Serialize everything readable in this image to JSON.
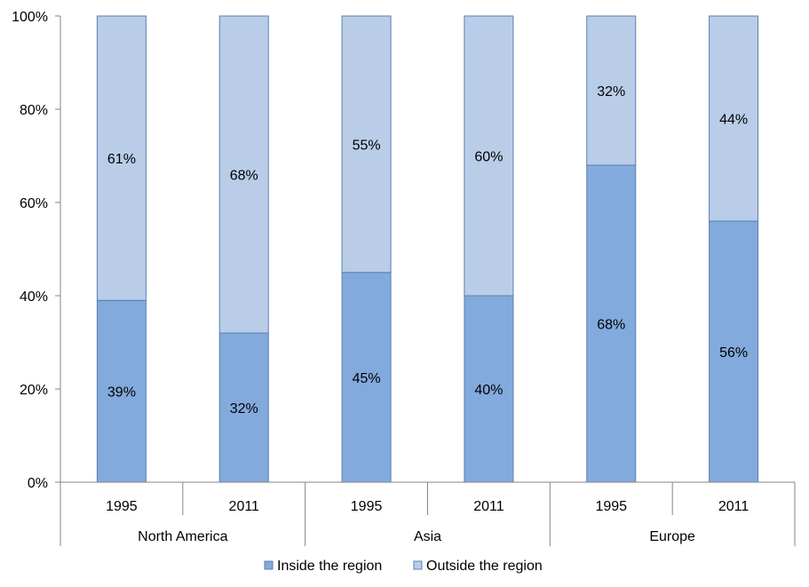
{
  "chart_data": {
    "type": "bar",
    "stacked": true,
    "percent_axis": true,
    "groups": [
      {
        "label": "North America",
        "categories": [
          "1995",
          "2011"
        ]
      },
      {
        "label": "Asia",
        "categories": [
          "1995",
          "2011"
        ]
      },
      {
        "label": "Europe",
        "categories": [
          "1995",
          "2011"
        ]
      }
    ],
    "series": [
      {
        "name": "Inside the region",
        "values": [
          39,
          32,
          45,
          40,
          68,
          56
        ],
        "labels": [
          "39%",
          "32%",
          "45%",
          "40%",
          "68%",
          "56%"
        ],
        "color": "#82aadc"
      },
      {
        "name": "Outside the region",
        "values": [
          61,
          68,
          55,
          60,
          32,
          44
        ],
        "labels": [
          "61%",
          "68%",
          "55%",
          "60%",
          "32%",
          "44%"
        ],
        "color": "#b9cde8"
      }
    ],
    "y_ticks": [
      "0%",
      "20%",
      "40%",
      "60%",
      "80%",
      "100%"
    ],
    "ylim": [
      0,
      100
    ],
    "bar_stroke": "#5b7fb0",
    "grid": false,
    "legend_position": "bottom"
  }
}
